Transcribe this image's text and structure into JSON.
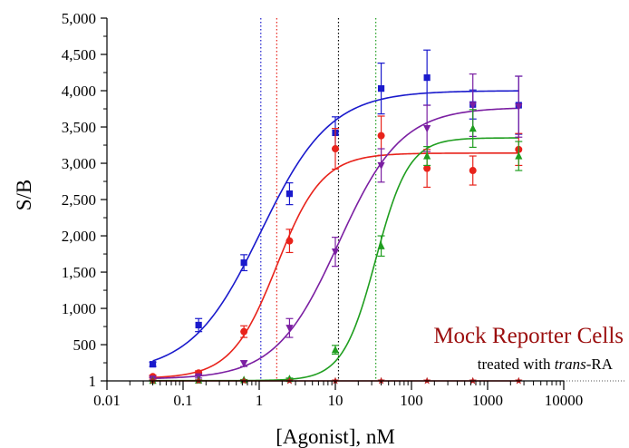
{
  "chart_data": {
    "type": "scatter",
    "x_scale": "log",
    "xlabel": "[Agonist], nM",
    "ylabel": "S/B",
    "xlim": [
      0.01,
      10000
    ],
    "ylim": [
      1,
      5000
    ],
    "x_ticks": [
      0.01,
      0.1,
      1,
      10,
      100,
      1000,
      10000
    ],
    "x_tick_labels": [
      "0.01",
      "0.1",
      "1",
      "10",
      "100",
      "1000",
      "10000"
    ],
    "y_ticks": [
      1,
      500,
      1000,
      1500,
      2000,
      2500,
      3000,
      3500,
      4000,
      4500,
      5000
    ],
    "y_tick_labels": [
      "1",
      "500",
      "1,000",
      "1,500",
      "2,000",
      "2,500",
      "3,000",
      "3,500",
      "4,000",
      "4,500",
      "5,000"
    ],
    "annotation": {
      "title": "Mock Reporter Cells",
      "subtitle_prefix": "treated with ",
      "subtitle_italic": "trans",
      "subtitle_suffix": "-RA"
    },
    "baseline_dotted_y": 1,
    "ec50_lines": [
      {
        "x": 1.05,
        "color": "#1a1acc"
      },
      {
        "x": 1.7,
        "color": "#e8231b"
      },
      {
        "x": 11,
        "color": "#000000"
      },
      {
        "x": 34,
        "color": "#1f9e1f"
      }
    ],
    "series": [
      {
        "color": "#1a1acc",
        "marker": "square",
        "x": [
          0.04,
          0.16,
          0.63,
          2.5,
          10,
          40,
          160,
          640,
          2560
        ],
        "y": [
          230,
          770,
          1630,
          2580,
          3420,
          4030,
          4180,
          3810,
          3800
        ],
        "err": [
          30,
          90,
          110,
          150,
          220,
          350,
          380,
          200,
          400
        ],
        "fit": {
          "bottom": 110,
          "top": 4000,
          "ec50": 1.05,
          "hill": 0.95
        }
      },
      {
        "color": "#e8231b",
        "marker": "circle",
        "x": [
          0.04,
          0.16,
          0.63,
          2.5,
          10,
          40,
          160,
          640,
          2560
        ],
        "y": [
          60,
          110,
          680,
          1930,
          3200,
          3380,
          2930,
          2900,
          3190
        ],
        "err": [
          20,
          30,
          80,
          160,
          280,
          270,
          260,
          200,
          220
        ],
        "fit": {
          "bottom": 35,
          "top": 3140,
          "ec50": 1.7,
          "hill": 1.45
        }
      },
      {
        "color": "#7b1fa2",
        "marker": "triangle-down",
        "x": [
          0.04,
          0.16,
          0.63,
          2.5,
          10,
          40,
          160,
          640,
          2560
        ],
        "y": [
          30,
          60,
          240,
          730,
          1780,
          2970,
          3480,
          3800,
          3780
        ],
        "err": [
          15,
          20,
          40,
          130,
          200,
          230,
          320,
          430,
          420
        ],
        "fit": {
          "bottom": 25,
          "top": 3770,
          "ec50": 11,
          "hill": 1.05
        }
      },
      {
        "color": "#1f9e1f",
        "marker": "triangle-up",
        "x": [
          0.04,
          0.16,
          0.63,
          2.5,
          10,
          40,
          160,
          640,
          2560
        ],
        "y": [
          5,
          10,
          15,
          30,
          430,
          1860,
          3100,
          3480,
          3100
        ],
        "err": [
          5,
          5,
          5,
          10,
          60,
          140,
          130,
          260,
          200
        ],
        "fit": {
          "bottom": 5,
          "top": 3350,
          "ec50": 34,
          "hill": 2.0
        }
      },
      {
        "color": "#b71c1c",
        "marker": "star",
        "x": [
          0.04,
          0.16,
          0.63,
          2.5,
          10,
          40,
          160,
          640,
          2560
        ],
        "y": [
          1,
          1,
          1,
          1,
          1,
          1,
          1,
          1,
          1
        ],
        "err": [
          0,
          0,
          0,
          0,
          0,
          0,
          0,
          0,
          0
        ],
        "fit": {
          "bottom": 1,
          "top": 1,
          "ec50": 10,
          "hill": 1
        }
      }
    ]
  }
}
